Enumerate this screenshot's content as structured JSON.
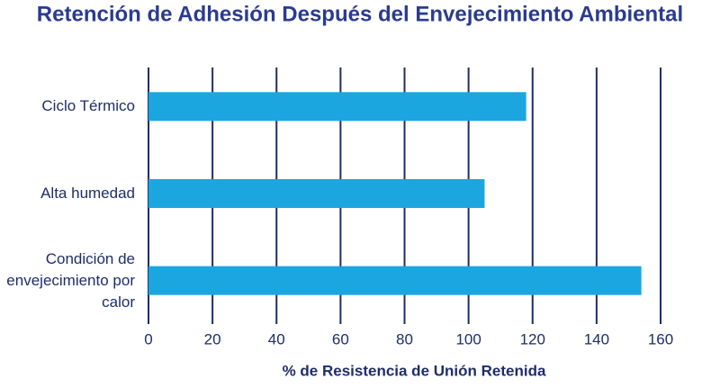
{
  "chart_data": {
    "type": "bar",
    "orientation": "horizontal",
    "title": "Retención de Adhesión Después del Envejecimiento Ambiental",
    "x_label": "% de Resistencia de Unión Retenida",
    "categories": [
      "Ciclo Térmico",
      "Alta humedad",
      "Condición de envejecimiento por calor"
    ],
    "values": [
      118,
      105,
      154
    ],
    "color": "#1ba6e0",
    "xlim": [
      0,
      160
    ],
    "xticks": [
      0,
      20,
      40,
      60,
      80,
      100,
      120,
      140,
      160
    ],
    "grid": true,
    "grid_color": "#1f2d6b"
  }
}
